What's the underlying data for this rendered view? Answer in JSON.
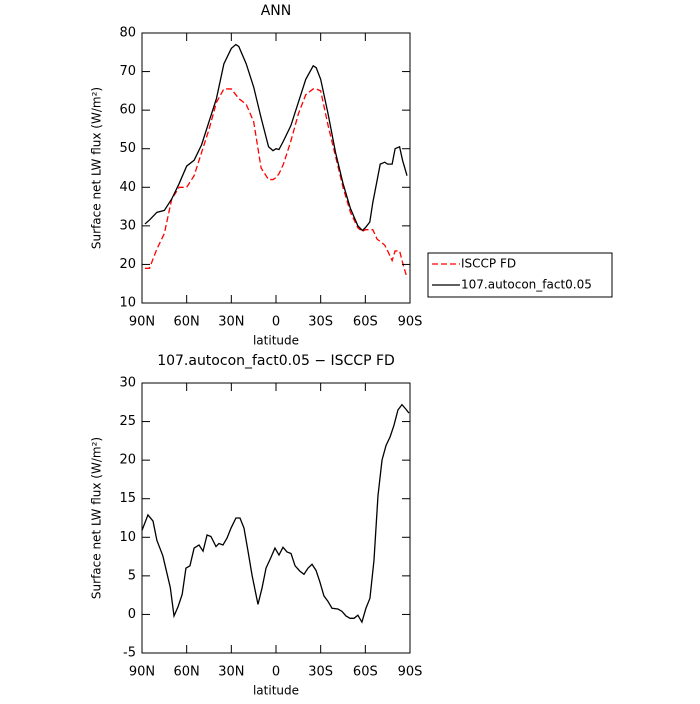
{
  "chart_data": [
    {
      "type": "line",
      "title": "ANN",
      "xlabel": "latitude",
      "ylabel": "Surface net LW flux (W/m²)",
      "x": [
        88,
        85,
        80,
        75,
        70,
        65,
        60,
        55,
        50,
        45,
        40,
        35,
        30,
        27,
        25,
        20,
        15,
        10,
        5,
        2,
        0,
        -2,
        -5,
        -10,
        -15,
        -20,
        -25,
        -27,
        -30,
        -35,
        -40,
        -45,
        -50,
        -55,
        -58,
        -60,
        -63,
        -65,
        -68,
        -70,
        -73,
        -75,
        -78,
        -80,
        -83,
        -85,
        -88
      ],
      "series": [
        {
          "name": "ISCCP FD",
          "color": "#ff0000",
          "line_style": "dashed",
          "values": [
            19,
            19,
            24,
            28,
            37,
            40,
            40,
            43,
            49,
            55,
            62,
            65.5,
            65.5,
            64,
            63,
            61.5,
            57,
            45,
            42,
            42,
            42.5,
            43.5,
            46,
            52,
            59,
            64,
            65.5,
            65.5,
            65,
            56,
            48,
            40,
            33.5,
            29.5,
            28.5,
            29,
            29,
            29,
            26.5,
            26,
            25,
            23.5,
            21,
            23.5,
            23.5,
            20.5,
            16.5
          ]
        },
        {
          "name": "107.autocon_fact0.05",
          "color": "#000000",
          "line_style": "solid",
          "values": [
            30.5,
            31.5,
            33.5,
            34,
            37,
            41,
            45.5,
            47,
            51,
            57,
            63,
            72,
            76,
            77,
            76.5,
            72,
            66,
            58,
            50.5,
            49.5,
            50,
            49.8,
            52,
            56,
            62,
            68,
            71.5,
            71,
            68,
            59,
            49,
            41,
            34.5,
            30,
            28.8,
            29.5,
            31,
            36,
            42,
            46,
            46.5,
            46,
            46,
            50,
            50.5,
            47,
            43
          ]
        }
      ],
      "xlim": [
        90,
        -90
      ],
      "xticks": [
        {
          "value": 90,
          "label": "90N"
        },
        {
          "value": 60,
          "label": "60N"
        },
        {
          "value": 30,
          "label": "30N"
        },
        0,
        {
          "value": -30,
          "label": "30S"
        },
        {
          "value": -60,
          "label": "60S"
        },
        {
          "value": -90,
          "label": "90S"
        }
      ],
      "ylim": [
        10,
        80
      ],
      "yticks": [
        10,
        20,
        30,
        40,
        50,
        60,
        70,
        80
      ],
      "legend": "right"
    },
    {
      "type": "line",
      "title": "107.autocon_fact0.05 − ISCCP FD",
      "xlabel": "latitude",
      "ylabel": "Surface net LW flux (W/m²)",
      "x": [
        90,
        86,
        82.6,
        80,
        76,
        71,
        68.5,
        65.8,
        63,
        60.5,
        57.8,
        55,
        51.7,
        49,
        46.3,
        43.7,
        40.3,
        38.3,
        35.6,
        32.9,
        30.2,
        26.9,
        24.2,
        21.5,
        18.8,
        16.1,
        12.1,
        9.4,
        6.7,
        3.4,
        0.7,
        -2,
        -4.7,
        -7.4,
        -10.1,
        -12.8,
        -16.1,
        -18.8,
        -21.5,
        -24.2,
        -26.9,
        -29.5,
        -32.2,
        -34.9,
        -37.6,
        -41.6,
        -44.3,
        -47,
        -49.7,
        -52.4,
        -55,
        -57.7,
        -60.4,
        -63.1,
        -65.8,
        -68.5,
        -71.2,
        -73.9,
        -76.6,
        -79.2,
        -81.9,
        -84.6,
        -87.3,
        -89.3
      ],
      "series": [
        {
          "color": "#000000",
          "line_style": "solid",
          "values": [
            10.9,
            12.9,
            12.1,
            9.6,
            7.6,
            3.5,
            -0.2,
            1,
            2.6,
            6,
            6.3,
            8.6,
            9,
            8.2,
            10.3,
            10.1,
            8.8,
            9.2,
            9,
            9.9,
            11.2,
            12.5,
            12.5,
            11.2,
            8.2,
            5.1,
            1.3,
            3.4,
            6,
            7.4,
            8.6,
            7.7,
            8.7,
            8.1,
            7.9,
            6.3,
            5.6,
            5.2,
            6,
            6.5,
            5.7,
            4.2,
            2.4,
            1.7,
            0.8,
            0.7,
            0.4,
            -0.2,
            -0.5,
            -0.5,
            -0.1,
            -1,
            0.8,
            2.1,
            7,
            15.4,
            20,
            21.9,
            23,
            24.5,
            26.5,
            27.2,
            26.6,
            26.1
          ]
        }
      ],
      "xlim": [
        90,
        -90
      ],
      "xticks": [
        {
          "value": 90,
          "label": "90N"
        },
        {
          "value": 60,
          "label": "60N"
        },
        {
          "value": 30,
          "label": "30N"
        },
        0,
        {
          "value": -30,
          "label": "30S"
        },
        {
          "value": -60,
          "label": "60S"
        },
        {
          "value": -90,
          "label": "90S"
        }
      ],
      "ylim": [
        -5,
        30
      ],
      "yticks": [
        -5,
        0,
        5,
        10,
        15,
        20,
        25,
        30
      ]
    }
  ]
}
